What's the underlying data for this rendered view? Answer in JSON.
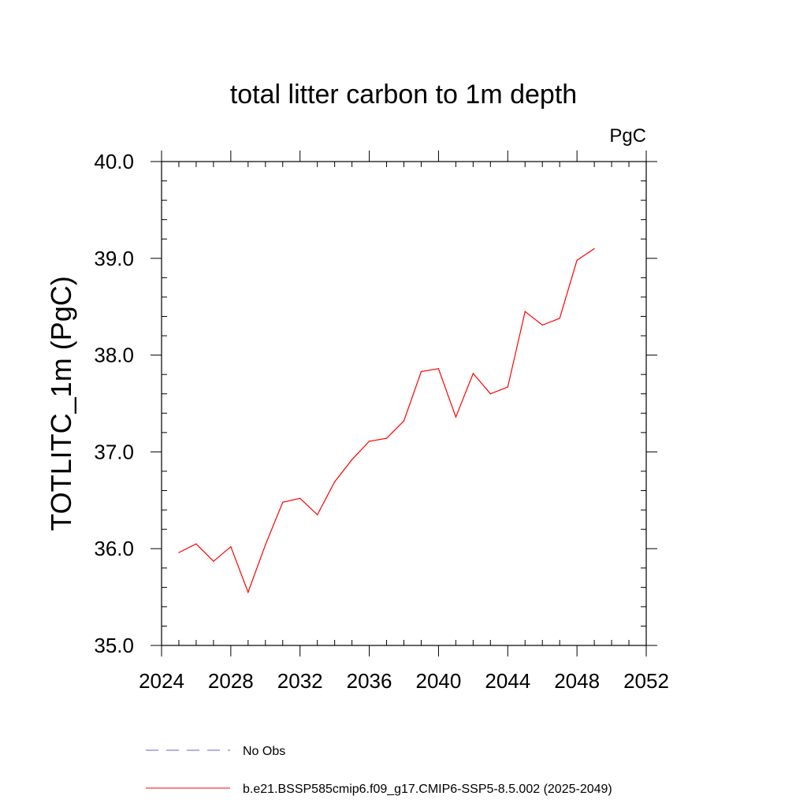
{
  "chart_data": {
    "type": "line",
    "title": "total litter carbon to 1m depth",
    "units": "PgC",
    "ylabel": "TOTLITC_1m  (PgC)",
    "xlabel": "",
    "xlim": [
      2024,
      2052
    ],
    "ylim": [
      35.0,
      40.0
    ],
    "xticks": [
      2024,
      2028,
      2032,
      2036,
      2040,
      2044,
      2048,
      2052
    ],
    "xtick_labels": [
      "2024",
      "2028",
      "2032",
      "2036",
      "2040",
      "2044",
      "2048",
      "2052"
    ],
    "yticks": [
      35.0,
      36.0,
      37.0,
      38.0,
      39.0,
      40.0
    ],
    "ytick_labels": [
      "35.0",
      "36.0",
      "37.0",
      "38.0",
      "39.0",
      "40.0"
    ],
    "grid": false,
    "legend_position": "bottom",
    "series": [
      {
        "name": "b.e21.BSSP585cmip6.f09_g17.CMIP6-SSP5-8.5.002 (2025-2049)",
        "color": "#ff0000",
        "style": "solid",
        "x": [
          2025,
          2026,
          2027,
          2028,
          2029,
          2030,
          2031,
          2032,
          2033,
          2034,
          2035,
          2036,
          2037,
          2038,
          2039,
          2040,
          2041,
          2042,
          2043,
          2044,
          2045,
          2046,
          2047,
          2048,
          2049
        ],
        "y": [
          35.96,
          36.05,
          35.87,
          36.02,
          35.55,
          36.04,
          36.48,
          36.52,
          36.35,
          36.69,
          36.92,
          37.11,
          37.14,
          37.32,
          37.83,
          37.86,
          37.36,
          37.81,
          37.6,
          37.67,
          38.45,
          38.31,
          38.38,
          38.98,
          39.1
        ]
      }
    ],
    "legend": [
      {
        "label": "No Obs",
        "color": "#6666cc",
        "style": "dashed"
      },
      {
        "label": "b.e21.BSSP585cmip6.f09_g17.CMIP6-SSP5-8.5.002 (2025-2049)",
        "color": "#ff0000",
        "style": "solid"
      }
    ]
  }
}
